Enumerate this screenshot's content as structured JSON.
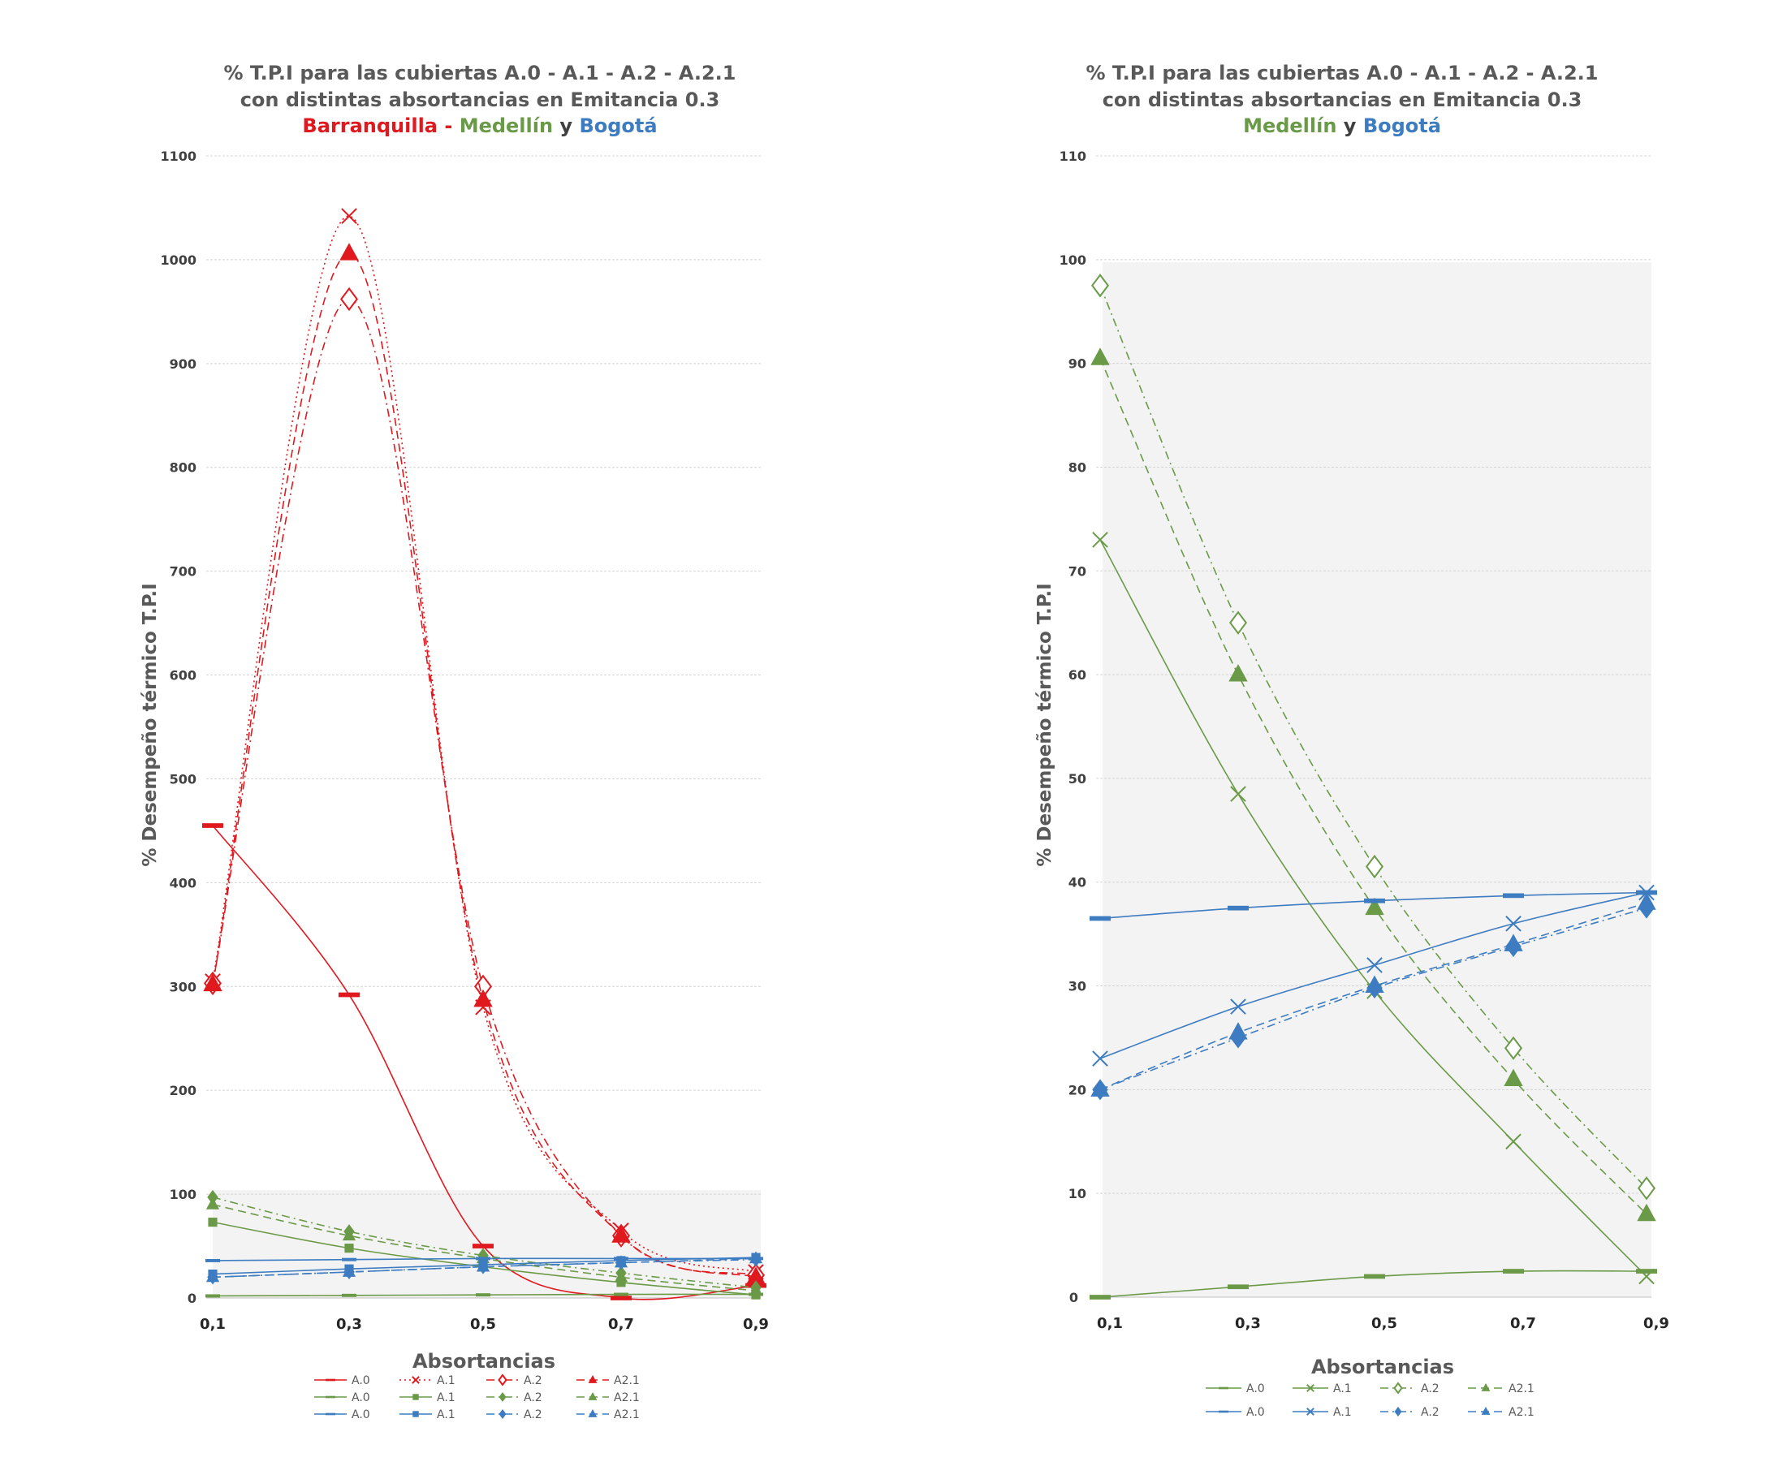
{
  "charts": [
    {
      "title_line1": "% T.P.I para las cubiertas A.0 - A.1 - A.2 - A.2.1",
      "title_line2": "con distintas absortancias en Emitancia 0.3",
      "title_line3": [
        {
          "text": "Barranquilla",
          "color": "#e0191f",
          "bold": true
        },
        {
          "text": " - ",
          "color": "#e0191f",
          "bold": true
        },
        {
          "text": "Medellín",
          "color": "#6a9a47",
          "bold": true
        },
        {
          "text": " y ",
          "color": "#404040",
          "bold": true
        },
        {
          "text": "Bogotá",
          "color": "#3d7cc0",
          "bold": true
        }
      ],
      "ylabel": "% Desempeño térmico T.P.I",
      "xlabel": "Absortancias",
      "y_ticks": [
        "0",
        "100",
        "200",
        "300",
        "400",
        "500",
        "600",
        "700",
        "800",
        "900",
        "1000",
        "1100"
      ],
      "x_ticks": [
        "0,1",
        "0,3",
        "0,5",
        "0,7",
        "0,9"
      ],
      "legend": [
        [
          "A.0",
          "A.1",
          "A.2",
          "A2.1"
        ],
        [
          "A.0",
          "A.1",
          "A.2",
          "A2.1"
        ],
        [
          "A.0",
          "A.1",
          "A.2",
          "A2.1"
        ]
      ]
    },
    {
      "title_line1": "% T.P.I para las cubiertas A.0 - A.1 - A.2 - A.2.1",
      "title_line2": "con distintas absortancias en Emitancia 0.3",
      "title_line3": [
        {
          "text": "Medellín",
          "color": "#6a9a47",
          "bold": true
        },
        {
          "text": " y ",
          "color": "#404040",
          "bold": true
        },
        {
          "text": "Bogotá",
          "color": "#3d7cc0",
          "bold": true
        }
      ],
      "ylabel": "% Desempeño térmico T.P.I",
      "xlabel": "Absortancias",
      "y_ticks": [
        "0",
        "10",
        "20",
        "30",
        "40",
        "50",
        "60",
        "70",
        "80",
        "90",
        "100",
        "110"
      ],
      "x_ticks": [
        "0,1",
        "0,3",
        "0,5",
        "0,7",
        "0,9"
      ],
      "legend": [
        [
          "A.0",
          "A.1",
          "A.2",
          "A2.1"
        ],
        [
          "A.0",
          "A.1",
          "A.2",
          "A2.1"
        ]
      ]
    }
  ],
  "colors": {
    "barranquilla": "#e0191f",
    "medellin": "#6a9a47",
    "bogota": "#3d7cc0",
    "grid": "#d4d4d4",
    "shade": "#f4f3f4",
    "text": "#404040"
  },
  "chart_data": [
    {
      "type": "line",
      "title": "% T.P.I para las cubiertas A.0 - A.1 - A.2 - A.2.1 con distintas absortancias en Emitancia 0.3 Barranquilla - Medellín y Bogotá",
      "xlabel": "Absortancias",
      "ylabel": "% Desempeño térmico T.P.I",
      "x": [
        0.1,
        0.3,
        0.5,
        0.7,
        0.9
      ],
      "ylim": [
        0,
        1100
      ],
      "grid": true,
      "legend": "bottom",
      "series": [
        {
          "name": "A.0",
          "group": "barranquilla",
          "marker": "dash",
          "style": "solid",
          "values": [
            455,
            292,
            50,
            0,
            12
          ]
        },
        {
          "name": "A.1",
          "group": "barranquilla",
          "marker": "x",
          "style": "dotted",
          "values": [
            305,
            1042,
            280,
            65,
            25
          ]
        },
        {
          "name": "A.2",
          "group": "barranquilla",
          "marker": "diamond-open",
          "style": "dashdot",
          "values": [
            303,
            962,
            300,
            60,
            22
          ]
        },
        {
          "name": "A2.1",
          "group": "barranquilla",
          "marker": "triangle",
          "style": "dashed",
          "values": [
            302,
            1006,
            287,
            60,
            20
          ]
        },
        {
          "name": "A.0",
          "group": "medellin",
          "marker": "dash",
          "style": "solid",
          "values": [
            2,
            2.5,
            3,
            3.5,
            3.5
          ]
        },
        {
          "name": "A.1",
          "group": "medellin",
          "marker": "square",
          "style": "solid",
          "values": [
            73,
            48,
            30,
            15,
            3
          ]
        },
        {
          "name": "A.2",
          "group": "medellin",
          "marker": "diamond",
          "style": "dashdot",
          "values": [
            97,
            64,
            41,
            24,
            10
          ]
        },
        {
          "name": "A2.1",
          "group": "medellin",
          "marker": "triangle",
          "style": "dashed",
          "values": [
            90,
            60,
            38,
            20,
            7
          ]
        },
        {
          "name": "A.0",
          "group": "bogota",
          "marker": "dash",
          "style": "solid",
          "values": [
            36,
            37,
            38,
            38,
            38
          ]
        },
        {
          "name": "A.1",
          "group": "bogota",
          "marker": "square",
          "style": "solid",
          "values": [
            23,
            28,
            32,
            36,
            39
          ]
        },
        {
          "name": "A.2",
          "group": "bogota",
          "marker": "diamond",
          "style": "dashdot",
          "values": [
            20,
            25,
            30,
            34,
            37
          ]
        },
        {
          "name": "A2.1",
          "group": "bogota",
          "marker": "triangle",
          "style": "dashed",
          "values": [
            20,
            25,
            30,
            34,
            38
          ]
        }
      ]
    },
    {
      "type": "line",
      "title": "% T.P.I para las cubiertas A.0 - A.1 - A.2 - A.2.1 con distintas absortancias en Emitancia 0.3 Medellín y Bogotá",
      "xlabel": "Absortancias",
      "ylabel": "% Desempeño térmico T.P.I",
      "x": [
        0.1,
        0.3,
        0.5,
        0.7,
        0.9
      ],
      "ylim": [
        0,
        110
      ],
      "grid": true,
      "legend": "bottom",
      "series": [
        {
          "name": "A.0",
          "group": "medellin",
          "marker": "dash",
          "style": "solid",
          "values": [
            0,
            1,
            2,
            2.5,
            2.5
          ]
        },
        {
          "name": "A.1",
          "group": "medellin",
          "marker": "x",
          "style": "solid",
          "values": [
            73,
            48.5,
            29.5,
            15,
            2
          ]
        },
        {
          "name": "A.2",
          "group": "medellin",
          "marker": "diamond-open",
          "style": "dashdot",
          "values": [
            97.5,
            65,
            41.5,
            24,
            10.5
          ]
        },
        {
          "name": "A2.1",
          "group": "medellin",
          "marker": "triangle",
          "style": "dashed",
          "values": [
            90.5,
            60,
            37.5,
            21,
            8
          ]
        },
        {
          "name": "A.0",
          "group": "bogota",
          "marker": "dash",
          "style": "solid",
          "values": [
            36.5,
            37.5,
            38.2,
            38.7,
            39
          ]
        },
        {
          "name": "A.1",
          "group": "bogota",
          "marker": "x",
          "style": "solid",
          "values": [
            23,
            28,
            32,
            36,
            39
          ]
        },
        {
          "name": "A.2",
          "group": "bogota",
          "marker": "diamond",
          "style": "dashdot",
          "values": [
            20,
            25,
            29.8,
            33.8,
            37.5
          ]
        },
        {
          "name": "A2.1",
          "group": "bogota",
          "marker": "triangle",
          "style": "dashed",
          "values": [
            20,
            25.5,
            30,
            34,
            38
          ]
        }
      ]
    }
  ]
}
